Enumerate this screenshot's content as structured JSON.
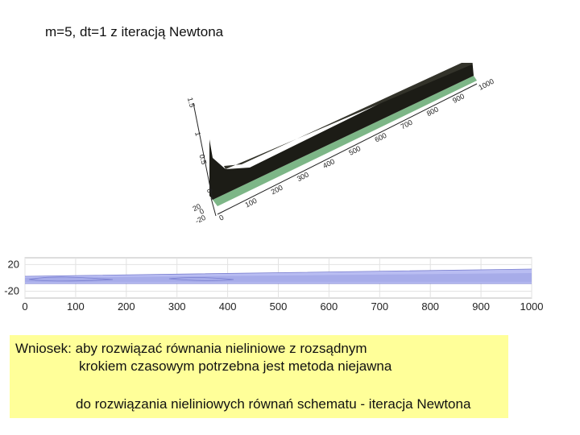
{
  "slide": {
    "title": "m=5, dt=1 z iteracją Newtona"
  },
  "surface_plot": {
    "x_ticks": [
      "0",
      "100",
      "200",
      "300",
      "400",
      "500",
      "600",
      "700",
      "800",
      "900",
      "1000"
    ],
    "y_ticks": [
      "20",
      "0",
      "-20"
    ],
    "z_ticks": [
      "1.5",
      "1",
      "0.5",
      "0"
    ],
    "colors": {
      "surface": "#1a1a14",
      "shadow": "#6fae7a"
    }
  },
  "contour_plot": {
    "x_ticks": [
      "0",
      "100",
      "200",
      "300",
      "400",
      "500",
      "600",
      "700",
      "800",
      "900",
      "1000"
    ],
    "y_ticks": [
      "20",
      "-20"
    ],
    "xlim": [
      0,
      1000
    ],
    "ylim": [
      -30,
      30
    ],
    "colors": {
      "band": "#b9bdf2",
      "band_core": "#a7ace9",
      "outline": "#7a7fd0"
    }
  },
  "conclusion": {
    "line1": "Wniosek: aby rozwiązać równania nieliniowe z rozsądnym",
    "line2": "krokiem czasowym potrzebna jest metoda niejawna",
    "line3": "do rozwiązania nieliniowych równań schematu - iteracja Newtona",
    "background": "#ffff99"
  }
}
